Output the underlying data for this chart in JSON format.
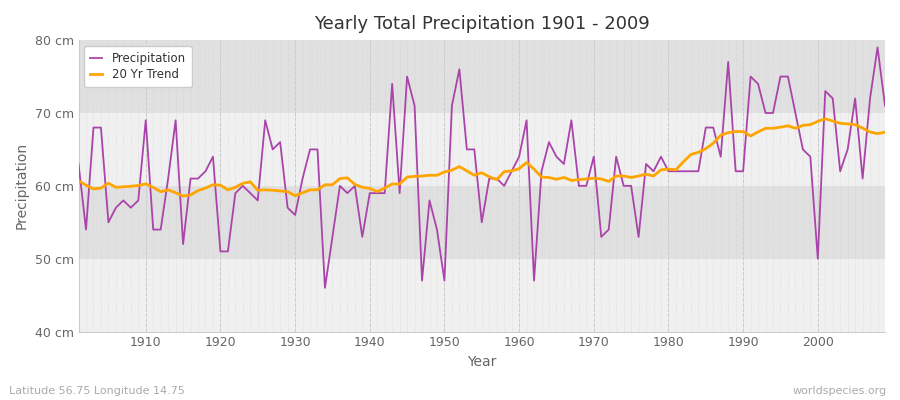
{
  "title": "Yearly Total Precipitation 1901 - 2009",
  "xlabel": "Year",
  "ylabel": "Precipitation",
  "bg_color": "#ffffff",
  "plot_bg_color": "#f0f0f0",
  "plot_band_color": "#e0e0e0",
  "precipitation_color": "#aa44aa",
  "trend_color": "#ffa500",
  "years": [
    1901,
    1902,
    1903,
    1904,
    1905,
    1906,
    1907,
    1908,
    1909,
    1910,
    1911,
    1912,
    1913,
    1914,
    1915,
    1916,
    1917,
    1918,
    1919,
    1920,
    1921,
    1922,
    1923,
    1924,
    1925,
    1926,
    1927,
    1928,
    1929,
    1930,
    1931,
    1932,
    1933,
    1934,
    1935,
    1936,
    1937,
    1938,
    1939,
    1940,
    1941,
    1942,
    1943,
    1944,
    1945,
    1946,
    1947,
    1948,
    1949,
    1950,
    1951,
    1952,
    1953,
    1954,
    1955,
    1956,
    1957,
    1958,
    1959,
    1960,
    1961,
    1962,
    1963,
    1964,
    1965,
    1966,
    1967,
    1968,
    1969,
    1970,
    1971,
    1972,
    1973,
    1974,
    1975,
    1976,
    1977,
    1978,
    1979,
    1980,
    1981,
    1982,
    1983,
    1984,
    1985,
    1986,
    1987,
    1988,
    1989,
    1990,
    1991,
    1992,
    1993,
    1994,
    1995,
    1996,
    1997,
    1998,
    1999,
    2000,
    2001,
    2002,
    2003,
    2004,
    2005,
    2006,
    2007,
    2008,
    2009
  ],
  "precipitation": [
    63,
    54,
    68,
    68,
    55,
    57,
    58,
    57,
    58,
    69,
    54,
    54,
    61,
    69,
    52,
    61,
    61,
    62,
    64,
    51,
    51,
    59,
    60,
    59,
    58,
    69,
    65,
    66,
    57,
    56,
    61,
    65,
    65,
    46,
    53,
    60,
    59,
    60,
    53,
    59,
    59,
    59,
    74,
    59,
    75,
    71,
    47,
    58,
    54,
    47,
    71,
    76,
    65,
    65,
    55,
    61,
    61,
    60,
    62,
    64,
    69,
    47,
    62,
    66,
    64,
    63,
    69,
    60,
    60,
    64,
    53,
    54,
    64,
    60,
    60,
    53,
    63,
    62,
    64,
    62,
    62,
    62,
    62,
    62,
    68,
    68,
    64,
    77,
    62,
    62,
    75,
    74,
    70,
    70,
    75,
    75,
    70,
    65,
    64,
    50,
    73,
    72,
    62,
    65,
    72,
    61,
    72,
    79,
    71
  ],
  "ylim": [
    40,
    80
  ],
  "yticks": [
    40,
    50,
    60,
    70,
    80
  ],
  "ytick_labels": [
    "40 cm",
    "50 cm",
    "60 cm",
    "70 cm",
    "80 cm"
  ],
  "xlim": [
    1901,
    2009
  ],
  "grid_color": "#cccccc",
  "watermark": "worldspecies.org",
  "footnote": "Latitude 56.75 Longitude 14.75",
  "title_color": "#333333",
  "label_color": "#666666",
  "tick_color": "#666666"
}
